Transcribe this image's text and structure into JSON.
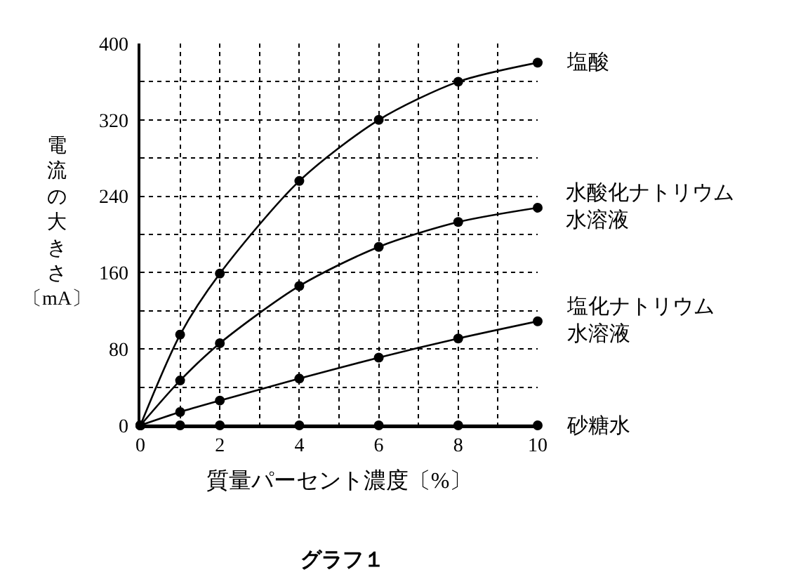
{
  "chart_data": {
    "type": "line",
    "title": "グラフ１",
    "xlabel": "質量パーセント濃度〔%〕",
    "ylabel": "電流の大きさ〔mA〕",
    "x": [
      0,
      1,
      2,
      4,
      6,
      8,
      10
    ],
    "series": [
      {
        "name": "塩酸",
        "color": "#000000",
        "values": [
          0,
          95,
          159,
          256,
          320,
          360,
          380
        ]
      },
      {
        "name": "水酸化ナトリウム水溶液",
        "color": "#000000",
        "values": [
          0,
          47,
          86,
          146,
          187,
          213,
          228
        ]
      },
      {
        "name": "塩化ナトリウム水溶液",
        "color": "#000000",
        "values": [
          0,
          14,
          26,
          49,
          71,
          91,
          109
        ]
      },
      {
        "name": "砂糖水",
        "color": "#000000",
        "values": [
          0,
          0,
          0,
          0,
          0,
          0,
          0
        ]
      }
    ],
    "xlim": [
      0,
      10
    ],
    "xticks": [
      0,
      {
        "value": 1,
        "label": null
      },
      2,
      {
        "value": 3,
        "label": null
      },
      4,
      {
        "value": 5,
        "label": null
      },
      6,
      {
        "value": 7,
        "label": null
      },
      8,
      {
        "value": 9,
        "label": null
      },
      10
    ],
    "ylim": [
      0,
      400
    ],
    "yticks": [
      0,
      {
        "value": 40,
        "label": null
      },
      80,
      {
        "value": 120,
        "label": null
      },
      160,
      {
        "value": 200,
        "label": null
      },
      240,
      {
        "value": 280,
        "label": null
      },
      320,
      {
        "value": 360,
        "label": null
      },
      400
    ],
    "grid": true,
    "legend": false,
    "marker": "circle",
    "line_style": "solid"
  }
}
